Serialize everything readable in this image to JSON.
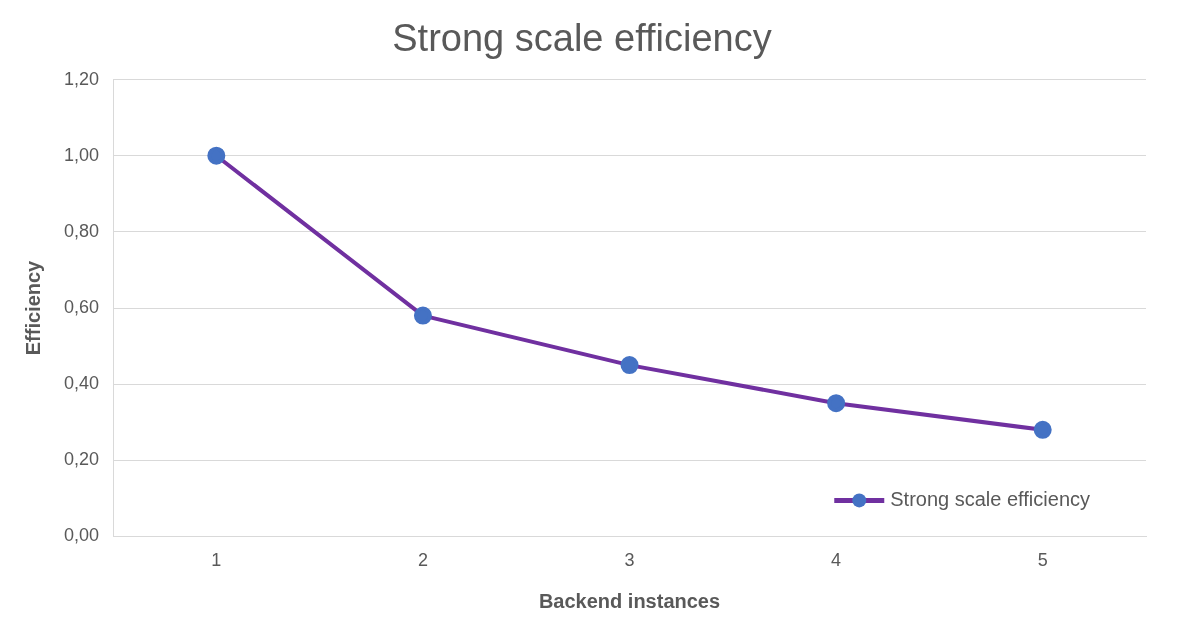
{
  "chart_data": {
    "type": "line",
    "title": "Strong scale efficiency",
    "xlabel": "Backend instances",
    "ylabel": "Efficiency",
    "categories": [
      "1",
      "2",
      "3",
      "4",
      "5"
    ],
    "series": [
      {
        "name": "Strong scale efficiency",
        "color": "#7030a0",
        "colors": [
          "#4472c4",
          "#4472c4",
          "#4472c4",
          "#4472c4",
          "#4472c4"
        ],
        "values": [
          1.0,
          0.58,
          0.45,
          0.35,
          0.28
        ]
      }
    ],
    "ylim": [
      0,
      1.2
    ],
    "yticks": [
      {
        "value": 0,
        "label": "0,00"
      },
      {
        "value": 0.2,
        "label": "0,20"
      },
      {
        "value": 0.4,
        "label": "0,40"
      },
      {
        "value": 0.6,
        "label": "0,60"
      },
      {
        "value": 0.8,
        "label": "0,80"
      },
      {
        "value": 1.0,
        "label": "1,00"
      },
      {
        "value": 1.2,
        "label": "1,20"
      }
    ],
    "grid": "y",
    "legend": "bottom right",
    "marker": "circle",
    "line_style": "solid"
  }
}
